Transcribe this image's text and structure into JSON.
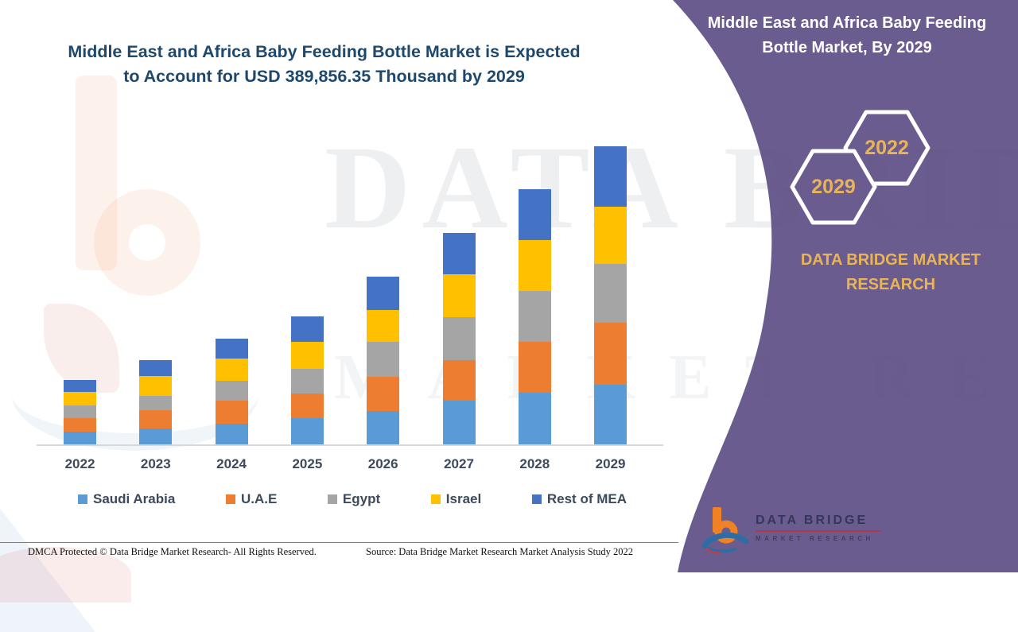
{
  "banner": {
    "title": "Middle East and Africa Baby Feeding Bottle Market, By 2029",
    "hexagons": [
      {
        "label": "2029"
      },
      {
        "label": "2022"
      }
    ],
    "brand": "DATA BRIDGE MARKET RESEARCH",
    "bg_color": "#6B5C90",
    "gold_color": "#E9B457"
  },
  "watermark": {
    "line1": "DATA BRIDGE",
    "line2": "MARKET RESEARCH"
  },
  "chart_data": {
    "type": "bar",
    "stacked": true,
    "title": "Middle East and Africa Baby Feeding Bottle Market is Expected to Account for USD 389,856.35 Thousand by 2029",
    "unit": "USD Thousand",
    "categories": [
      "2022",
      "2023",
      "2024",
      "2025",
      "2026",
      "2027",
      "2028",
      "2029"
    ],
    "series": [
      {
        "name": "Saudi Arabia",
        "color": "#5B9BD5",
        "values": [
          16700,
          20800,
          27100,
          34400,
          43800,
          57300,
          67700,
          78200
        ]
      },
      {
        "name": "U.A.E",
        "color": "#ED7D31",
        "values": [
          17700,
          24000,
          30200,
          32300,
          44800,
          53100,
          66700,
          81300
        ]
      },
      {
        "name": "Egypt",
        "color": "#A5A5A5",
        "values": [
          16600,
          18800,
          26100,
          32300,
          45900,
          56300,
          66700,
          76100
        ]
      },
      {
        "name": "Israel",
        "color": "#FFC000",
        "values": [
          17700,
          26100,
          29200,
          35400,
          41700,
          56300,
          65600,
          75000
        ]
      },
      {
        "name": "Rest of MEA",
        "color": "#4472C4",
        "values": [
          15600,
          20800,
          26100,
          33400,
          42700,
          53100,
          66700,
          79256
        ]
      }
    ],
    "totals_estimated": [
      84300,
      110500,
      138700,
      167800,
      218900,
      276100,
      333400,
      389856
    ],
    "ylim": [
      0,
      400000
    ],
    "grid": false,
    "y_axis_visible": false,
    "legend_position": "bottom",
    "note": "segment values estimated from bar pixel heights; only 2029 total (389,856.35) is labeled"
  },
  "footer": {
    "dmca": "DMCA Protected © Data Bridge Market Research- All Rights Reserved.",
    "source": "Source: Data Bridge Market Research Market Analysis Study 2022"
  },
  "footer_logo": {
    "name": "DATA BRIDGE",
    "sub": "MARKET RESEARCH"
  }
}
